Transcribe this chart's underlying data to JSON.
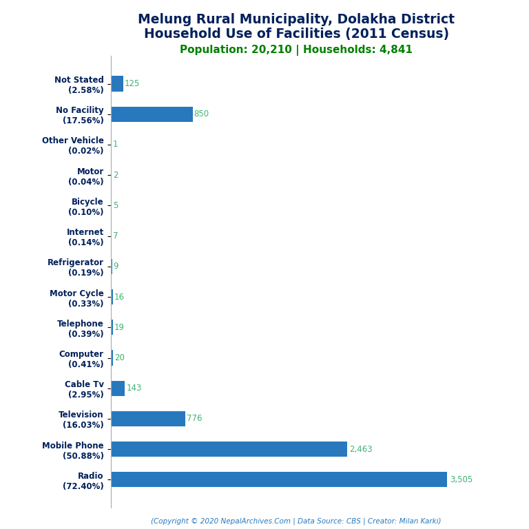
{
  "title_line1": "Melung Rural Municipality, Dolakha District",
  "title_line2": "Household Use of Facilities (2011 Census)",
  "subtitle": "Population: 20,210 | Households: 4,841",
  "footer": "(Copyright © 2020 NepalArchives.Com | Data Source: CBS | Creator: Milan Karki)",
  "categories": [
    "Not Stated\n(2.58%)",
    "No Facility\n(17.56%)",
    "Other Vehicle\n(0.02%)",
    "Motor\n(0.04%)",
    "Bicycle\n(0.10%)",
    "Internet\n(0.14%)",
    "Refrigerator\n(0.19%)",
    "Motor Cycle\n(0.33%)",
    "Telephone\n(0.39%)",
    "Computer\n(0.41%)",
    "Cable Tv\n(2.95%)",
    "Television\n(16.03%)",
    "Mobile Phone\n(50.88%)",
    "Radio\n(72.40%)"
  ],
  "values": [
    125,
    850,
    1,
    2,
    5,
    7,
    9,
    16,
    19,
    20,
    143,
    776,
    2463,
    3505
  ],
  "bar_color": "#2878BE",
  "title_color": "#00205B",
  "subtitle_color": "#008000",
  "value_color": "#3CB371",
  "footer_color": "#2878BE",
  "ylabel_color": "#00205B",
  "background_color": "#FFFFFF",
  "title_fontsize": 13.5,
  "subtitle_fontsize": 11,
  "value_fontsize": 8.5,
  "ylabel_fontsize": 8.5,
  "footer_fontsize": 7.5
}
